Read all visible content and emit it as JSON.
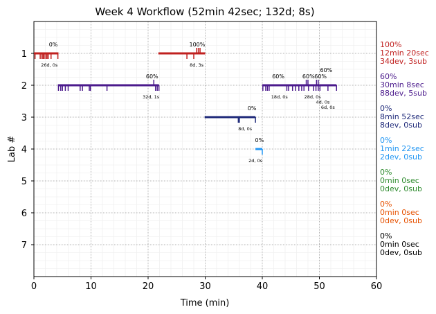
{
  "chart_data": {
    "type": "timeline",
    "title": "Week 4 Workflow (52min 42sec; 132d; 8s)",
    "xlabel": "Time (min)",
    "ylabel": "Lab #",
    "xlim": [
      0,
      60
    ],
    "ylim": [
      8,
      0
    ],
    "xticks": [
      "0",
      "10",
      "20",
      "30",
      "40",
      "50",
      "60"
    ],
    "yticks": [
      "1",
      "2",
      "3",
      "4",
      "5",
      "6",
      "7"
    ],
    "grid": true,
    "labs": [
      {
        "lab": 1,
        "color": "#c0201f",
        "summary": [
          "100%",
          "12min 20sec",
          "34dev, 3sub"
        ],
        "segments": [
          {
            "start": 0,
            "end": 4.3,
            "pct": "0%",
            "pct_at": 3.4,
            "info": "26d, 0s",
            "info_at": 2.7,
            "down": [
              0.2,
              1.1,
              1.4,
              1.6,
              1.8,
              2.1,
              2.3,
              2.5,
              3.0,
              4.2
            ],
            "up": []
          },
          {
            "start": 21.8,
            "end": 30,
            "pct": "100%",
            "pct_at": 28.6,
            "info": "8d, 3s",
            "info_at": 28.5,
            "down": [
              26.8,
              28.0
            ],
            "up": [
              28.5,
              28.8,
              29.1
            ]
          }
        ]
      },
      {
        "lab": 2,
        "color": "#4b1a8c",
        "summary": [
          "60%",
          "30min 8sec",
          "88dev, 5sub"
        ],
        "segments": [
          {
            "start": 4.2,
            "end": 21.9,
            "pct": "60%",
            "pct_at": 20.7,
            "info": "32d, 1s",
            "info_at": 20.5,
            "down": [
              4.3,
              4.7,
              5.0,
              5.5,
              6.0,
              8.1,
              8.5,
              9.7,
              9.9,
              12.8,
              21.3,
              21.6,
              21.9
            ],
            "up": [
              21.0
            ]
          },
          {
            "start": 40,
            "end": 53,
            "pct": "60%",
            "pct_at": 42.8,
            "info": "18d, 0s",
            "info_at": 43,
            "down": [
              40.1,
              40.6,
              40.9,
              41.2,
              44.3,
              44.6,
              45.3,
              45.8,
              46.4,
              46.9,
              47.3,
              48.1,
              49.0,
              49.4,
              49.8,
              50.1,
              51.5,
              53.0
            ],
            "up": [
              47.7,
              48.0,
              49.5,
              49.8
            ]
          },
          {
            "start": null,
            "end": null,
            "pct": "60%",
            "pct_at": 48.1,
            "info": "28d, 0s",
            "info_at": 48.8,
            "down": [],
            "up": []
          },
          {
            "start": null,
            "end": null,
            "pct": "60%",
            "pct_at": 50.2,
            "info": "4d, 0s",
            "info_at": 50.6,
            "down": [],
            "up": []
          },
          {
            "start": null,
            "end": null,
            "pct": "60%",
            "pct_at": 51.2,
            "info": "6d, 0s",
            "info_at": 51.5,
            "down": [],
            "up": []
          }
        ]
      },
      {
        "lab": 3,
        "color": "#1f2a7a",
        "summary": [
          "0%",
          "8min 52sec",
          "8dev, 0sub"
        ],
        "segments": [
          {
            "start": 29.9,
            "end": 38.8,
            "pct": "0%",
            "pct_at": 38.2,
            "info": "8d, 0s",
            "info_at": 37,
            "down": [
              35.8,
              36.0,
              38.8
            ],
            "up": []
          }
        ]
      },
      {
        "lab": 4,
        "color": "#2196f3",
        "summary": [
          "0%",
          "1min 22sec",
          "2dev, 0sub"
        ],
        "segments": [
          {
            "start": 38.8,
            "end": 40,
            "pct": "0%",
            "pct_at": 39.5,
            "info": "2d, 0s",
            "info_at": 38.8,
            "down": [
              40
            ],
            "up": []
          }
        ]
      },
      {
        "lab": 5,
        "color": "#2e8b2e",
        "summary": [
          "0%",
          "0min 0sec",
          "0dev, 0sub"
        ],
        "segments": []
      },
      {
        "lab": 6,
        "color": "#e65100",
        "summary": [
          "0%",
          "0min 0sec",
          "0dev, 0sub"
        ],
        "segments": []
      },
      {
        "lab": 7,
        "color": "#000000",
        "summary": [
          "0%",
          "0min 0sec",
          "0dev, 0sub"
        ],
        "segments": []
      }
    ]
  }
}
